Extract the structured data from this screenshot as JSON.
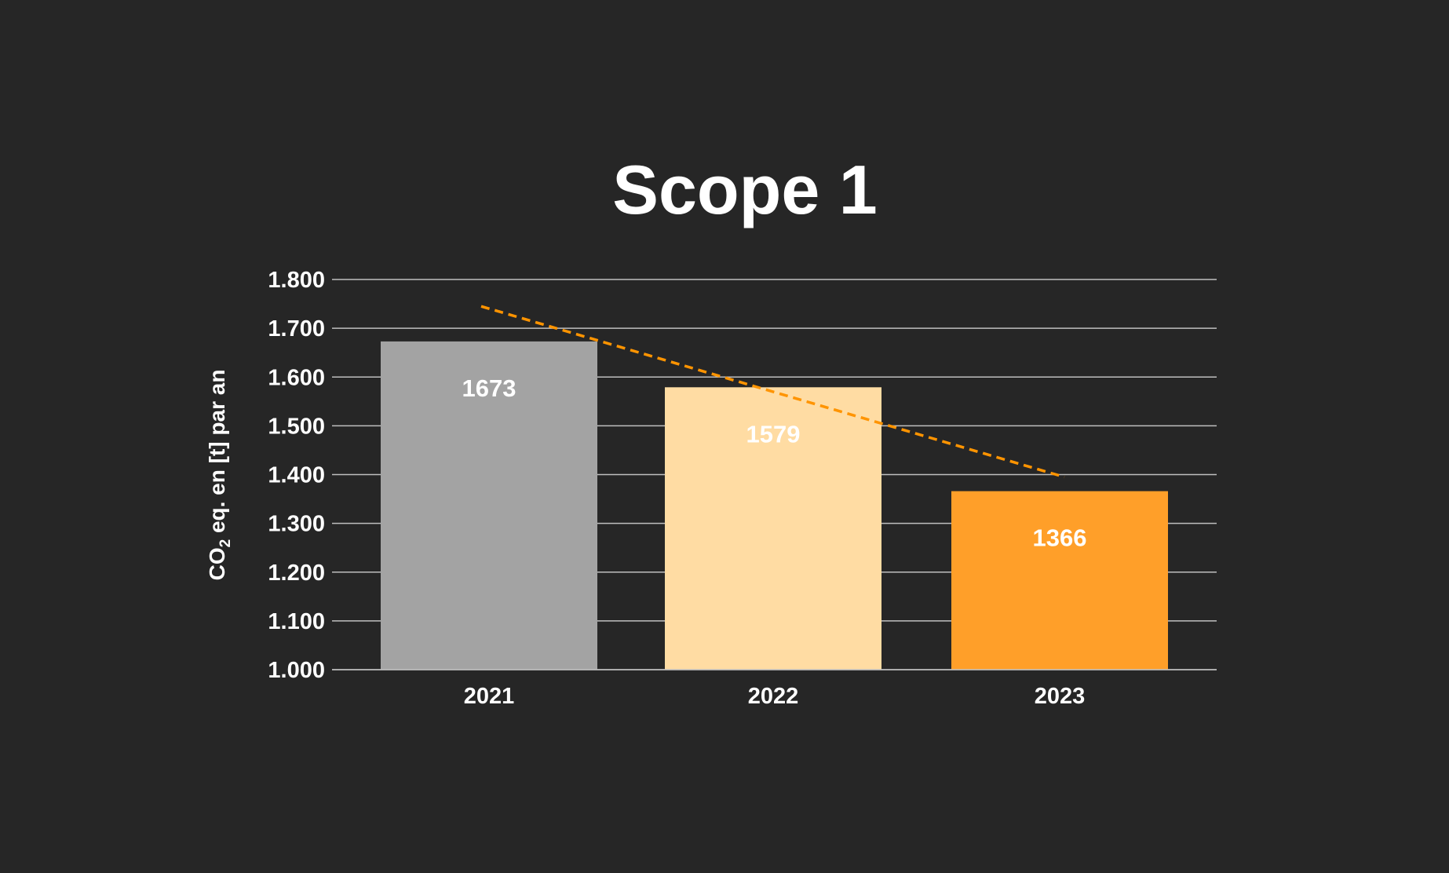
{
  "chart_data": {
    "type": "bar",
    "title": "Scope 1",
    "xlabel": "",
    "ylabel": {
      "prefix": "CO",
      "subscript": "2",
      "suffix": " eq. en [t] par an"
    },
    "ylim": [
      1000,
      1800
    ],
    "yticks": [
      1000,
      1100,
      1200,
      1300,
      1400,
      1500,
      1600,
      1700,
      1800
    ],
    "ytick_labels": [
      "1.000",
      "1.100",
      "1.200",
      "1.300",
      "1.400",
      "1.500",
      "1.600",
      "1.700",
      "1.800"
    ],
    "categories": [
      "2021",
      "2022",
      "2023"
    ],
    "values": [
      1673,
      1579,
      1366
    ],
    "value_labels": [
      "1673",
      "1579",
      "1366"
    ],
    "bar_colors": [
      "#a3a3a3",
      "#ffdca3",
      "#ff9f29"
    ],
    "grid": true,
    "legend": "none",
    "trendline": {
      "style": "dashed",
      "color": "#ff9400",
      "start_value": 1745,
      "end_value": 1395
    }
  },
  "colors": {
    "background": "#262626",
    "text": "#ffffff",
    "grid": "#bfbfbf"
  }
}
